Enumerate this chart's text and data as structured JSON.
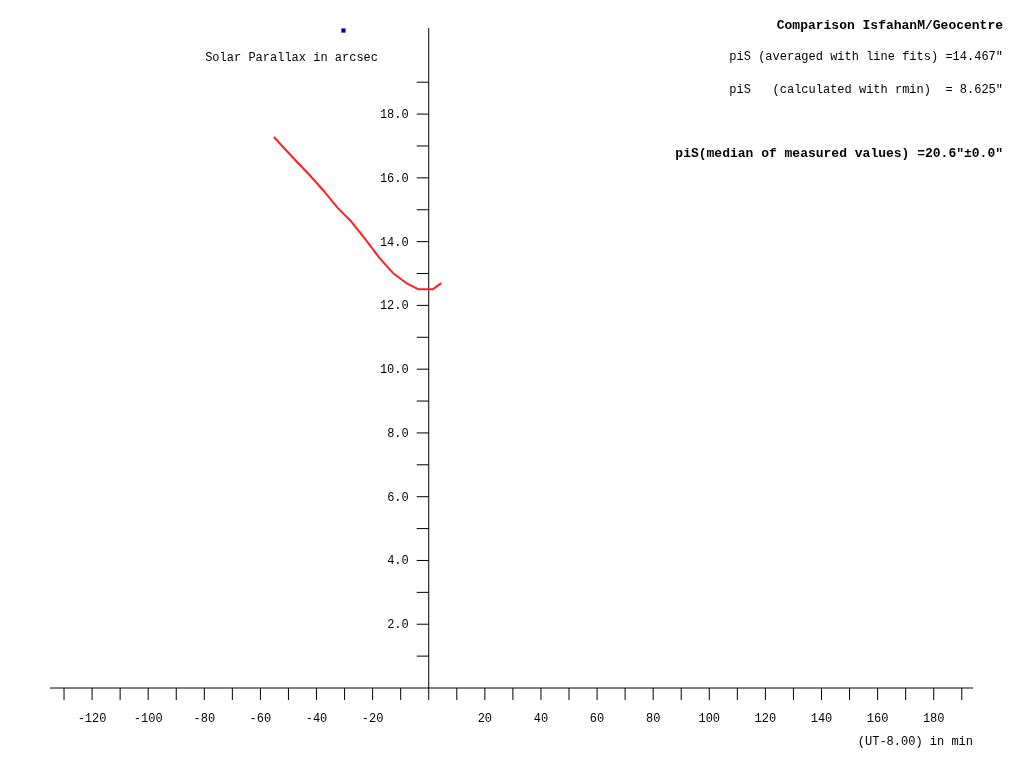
{
  "chart_data": {
    "type": "line",
    "title": "Comparison IsfahanM/Geocentre",
    "ylabel": "Solar Parallax in arcsec",
    "xlabel": "(UT-8.00) in min",
    "annotations": [
      "piS (averaged with line fits) =14.467\"",
      "piS   (calculated with rmin)  = 8.625\"",
      "piS(median of measured values) =20.6\"±0.0\""
    ],
    "xlim": [
      -135,
      194
    ],
    "ylim": [
      0,
      20.7
    ],
    "xticks": [
      {
        "value": -130,
        "label": null
      },
      {
        "value": -120,
        "label": "-120"
      },
      {
        "value": -110,
        "label": null
      },
      {
        "value": -100,
        "label": "-100"
      },
      {
        "value": -90,
        "label": null
      },
      {
        "value": -80,
        "label": "-80"
      },
      {
        "value": -70,
        "label": null
      },
      {
        "value": -60,
        "label": "-60"
      },
      {
        "value": -50,
        "label": null
      },
      {
        "value": -40,
        "label": "-40"
      },
      {
        "value": -30,
        "label": null
      },
      {
        "value": -20,
        "label": "-20"
      },
      {
        "value": -10,
        "label": null
      },
      {
        "value": 0,
        "label": null
      },
      {
        "value": 10,
        "label": null
      },
      {
        "value": 20,
        "label": "20"
      },
      {
        "value": 30,
        "label": null
      },
      {
        "value": 40,
        "label": "40"
      },
      {
        "value": 50,
        "label": null
      },
      {
        "value": 60,
        "label": "60"
      },
      {
        "value": 70,
        "label": null
      },
      {
        "value": 80,
        "label": "80"
      },
      {
        "value": 90,
        "label": null
      },
      {
        "value": 100,
        "label": "100"
      },
      {
        "value": 110,
        "label": null
      },
      {
        "value": 120,
        "label": "120"
      },
      {
        "value": 130,
        "label": null
      },
      {
        "value": 140,
        "label": "140"
      },
      {
        "value": 150,
        "label": null
      },
      {
        "value": 160,
        "label": "160"
      },
      {
        "value": 170,
        "label": null
      },
      {
        "value": 180,
        "label": "180"
      },
      {
        "value": 190,
        "label": null
      }
    ],
    "yticks": [
      {
        "value": 1,
        "label": null
      },
      {
        "value": 2,
        "label": "2.0"
      },
      {
        "value": 3,
        "label": null
      },
      {
        "value": 4,
        "label": "4.0"
      },
      {
        "value": 5,
        "label": null
      },
      {
        "value": 6,
        "label": "6.0"
      },
      {
        "value": 7,
        "label": null
      },
      {
        "value": 8,
        "label": "8.0"
      },
      {
        "value": 9,
        "label": null
      },
      {
        "value": 10,
        "label": "10.0"
      },
      {
        "value": 11,
        "label": null
      },
      {
        "value": 12,
        "label": "12.0"
      },
      {
        "value": 13,
        "label": null
      },
      {
        "value": 14,
        "label": "14.0"
      },
      {
        "value": 15,
        "label": null
      },
      {
        "value": 16,
        "label": "16.0"
      },
      {
        "value": 17,
        "label": null
      },
      {
        "value": 18,
        "label": "18.0"
      },
      {
        "value": 19,
        "label": null
      }
    ],
    "grid": false,
    "series": [
      {
        "color": "#ff2020",
        "x": [
          -55.2,
          -47.6,
          -42.5,
          -37.7,
          -32.4,
          -27.6,
          -22.9,
          -17.5,
          -12.7,
          -8,
          -3.8,
          1.5,
          4.5
        ],
        "values": [
          17.28,
          16.56,
          16.09,
          15.62,
          15.05,
          14.63,
          14.11,
          13.48,
          13.01,
          12.7,
          12.51,
          12.51,
          12.7
        ]
      },
      {
        "type": "scatter",
        "color": "#000099",
        "x": [
          -30.4
        ],
        "values": [
          20.62
        ],
        "marker": "square"
      }
    ]
  }
}
